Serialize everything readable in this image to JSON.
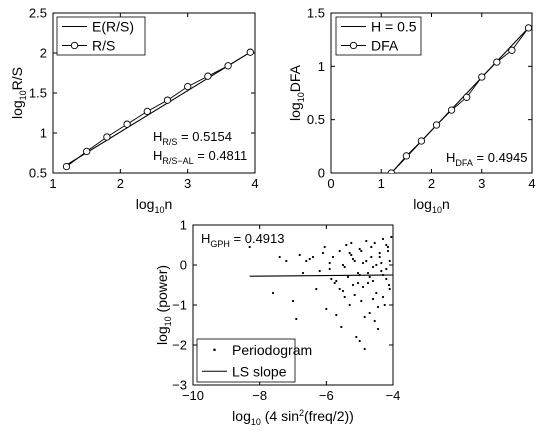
{
  "chart_data": [
    {
      "type": "line",
      "xlabel": {
        "base": "log",
        "sub": "10",
        "tail": "n"
      },
      "ylabel": {
        "base": "log",
        "sub": "10",
        "tail": "R/S"
      },
      "xlim": [
        1,
        4
      ],
      "ylim": [
        0.5,
        2.5
      ],
      "xticks": [
        1,
        2,
        3,
        4
      ],
      "yticks": [
        0.5,
        1,
        1.5,
        2,
        2.5
      ],
      "legend_position": "top-left",
      "series": [
        {
          "name": "E(R/S)",
          "marker": "none",
          "x": [
            1.2,
            3.93
          ],
          "y": [
            0.6,
            2.01
          ]
        },
        {
          "name": "R/S",
          "marker": "circle",
          "x": [
            1.2,
            1.5,
            1.8,
            2.1,
            2.4,
            2.7,
            3.0,
            3.3,
            3.6,
            3.93
          ],
          "y": [
            0.58,
            0.77,
            0.95,
            1.11,
            1.27,
            1.41,
            1.58,
            1.71,
            1.84,
            2.01
          ]
        }
      ],
      "annotations": [
        {
          "base": "H",
          "sub": "R/S",
          "value": " = 0.5154"
        },
        {
          "base": "H",
          "sub": "R/S−AL",
          "value": " = 0.4811"
        }
      ]
    },
    {
      "type": "line",
      "xlabel": {
        "base": "log",
        "sub": "10",
        "tail": "n"
      },
      "ylabel": {
        "base": "log",
        "sub": "10",
        "tail": "DFA"
      },
      "xlim": [
        0,
        4
      ],
      "ylim": [
        0,
        1.5
      ],
      "xticks": [
        0,
        1,
        2,
        3,
        4
      ],
      "yticks": [
        0,
        0.5,
        1,
        1.5
      ],
      "legend_position": "top-left",
      "series": [
        {
          "name": "H = 0.5",
          "marker": "none",
          "x": [
            1.2,
            3.93
          ],
          "y": [
            0.0,
            1.36
          ]
        },
        {
          "name": "DFA",
          "marker": "circle",
          "x": [
            1.2,
            1.5,
            1.8,
            2.1,
            2.4,
            2.7,
            3.0,
            3.3,
            3.6,
            3.93
          ],
          "y": [
            0.0,
            0.16,
            0.3,
            0.45,
            0.59,
            0.71,
            0.9,
            1.04,
            1.15,
            1.36
          ]
        }
      ],
      "annotations": [
        {
          "base": "H",
          "sub": "DFA",
          "value": " = 0.4945"
        }
      ]
    },
    {
      "type": "scatter",
      "xlabel": {
        "base": "log",
        "sub": "10",
        "tail": " (4 sin",
        "sup": "2",
        "tail2": "(freq/2))"
      },
      "ylabel": {
        "base": "log",
        "sub": "10",
        "tail": " (power)"
      },
      "xlim": [
        -10,
        -4
      ],
      "ylim": [
        -3,
        1
      ],
      "xticks": [
        -10,
        -8,
        -6,
        -4
      ],
      "yticks": [
        -3,
        -2,
        -1,
        0,
        1
      ],
      "legend_position": "bottom-left",
      "series": [
        {
          "name": "Periodogram",
          "marker": "dot",
          "x": [
            -8.3,
            -7.6,
            -7.2,
            -6.9,
            -6.7,
            -6.5,
            -6.3,
            -6.1,
            -6.0,
            -5.9,
            -5.8,
            -5.7,
            -5.6,
            -5.55,
            -5.5,
            -5.45,
            -5.4,
            -5.35,
            -5.3,
            -5.25,
            -5.2,
            -5.15,
            -5.1,
            -5.05,
            -5.0,
            -4.95,
            -4.9,
            -4.85,
            -4.8,
            -4.75,
            -4.7,
            -4.65,
            -4.6,
            -4.55,
            -4.5,
            -4.45,
            -4.4,
            -4.35,
            -4.3,
            -4.25,
            -4.2,
            -4.15,
            -4.1,
            -6.8,
            -6.2,
            -5.9,
            -5.6,
            -5.3,
            -5.0,
            -4.8,
            -4.6,
            -4.4,
            -4.2,
            -5.7,
            -5.2,
            -4.9,
            -4.7,
            -4.5,
            -4.3,
            -4.15,
            -7.0,
            -6.4,
            -5.85,
            -5.45,
            -5.15,
            -4.95,
            -4.75,
            -4.55,
            -4.35,
            -4.12,
            -5.0,
            -4.6,
            -4.3,
            -4.1,
            -4.05,
            -4.2,
            -4.45,
            -4.65,
            -4.85,
            -5.05,
            -5.25,
            -5.5,
            -5.75,
            -6.05,
            -6.6,
            -7.4
          ],
          "y": [
            0.45,
            -0.7,
            0.1,
            -1.35,
            -0.2,
            0.15,
            -0.6,
            0.3,
            -1.1,
            -0.1,
            0.2,
            -0.4,
            0.35,
            -1.55,
            0.0,
            -0.8,
            0.5,
            -0.3,
            -1.0,
            0.25,
            -0.5,
            0.1,
            -1.8,
            -0.2,
            0.4,
            -0.9,
            0.05,
            -2.1,
            0.6,
            -0.45,
            -1.2,
            0.2,
            -0.05,
            0.55,
            -0.7,
            -1.6,
            0.3,
            -0.15,
            0.65,
            -1.0,
            -0.35,
            0.45,
            0.1,
            0.25,
            -0.15,
            0.05,
            -0.6,
            0.3,
            -0.25,
            0.1,
            -0.4,
            0.2,
            -0.1,
            -1.25,
            0.15,
            -0.55,
            -0.3,
            0.0,
            -0.8,
            0.35,
            -0.9,
            0.2,
            -0.35,
            -0.05,
            -0.75,
            0.35,
            -0.2,
            -1.4,
            0.05,
            -0.5,
            -1.9,
            -0.85,
            -0.25,
            -0.6,
            0.7,
            0.5,
            -1.05,
            0.45,
            -1.3,
            -0.45,
            0.55,
            -0.65,
            -0.45,
            0.45,
            0.1,
            0.2
          ]
        },
        {
          "name": "LS slope",
          "marker": "none",
          "x": [
            -8.3,
            -4.0
          ],
          "y": [
            -0.28,
            -0.25
          ]
        }
      ],
      "annotations": [
        {
          "base": "H",
          "sub": "GPH",
          "value": " = 0.4913"
        }
      ]
    }
  ]
}
